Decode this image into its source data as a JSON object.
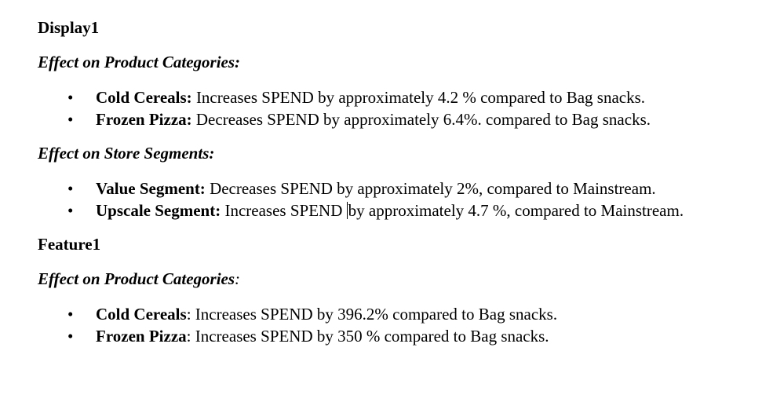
{
  "sections": [
    {
      "heading": "Display1",
      "groups": [
        {
          "subheading": "Effect on Product Categories:",
          "subheading_tail": "",
          "items": [
            {
              "term": "Cold Cereals:",
              "text": " Increases SPEND by approximately 4.2 % compared to Bag snacks."
            },
            {
              "term": "Frozen Pizza:",
              "text": " Decreases SPEND by approximately 6.4%. compared to Bag snacks."
            }
          ]
        },
        {
          "subheading": "Effect on Store Segments:",
          "subheading_tail": "",
          "items": [
            {
              "term": "Value Segment:",
              "text": " Decreases SPEND by approximately 2%, compared to Mainstream."
            },
            {
              "term": "Upscale Segment:",
              "text_before_caret": " Increases SPEND ",
              "text_after_caret": "by approximately 4.7 %, compared to Mainstream."
            }
          ]
        }
      ]
    },
    {
      "heading": "Feature1",
      "groups": [
        {
          "subheading": "Effect on Product Categories",
          "subheading_tail": ":",
          "items": [
            {
              "term": "Cold Cereals",
              "text": ": Increases SPEND by 396.2% compared to Bag snacks."
            },
            {
              "term": "Frozen Pizza",
              "text": ": Increases SPEND by 350 % compared to Bag snacks."
            }
          ]
        }
      ]
    }
  ]
}
